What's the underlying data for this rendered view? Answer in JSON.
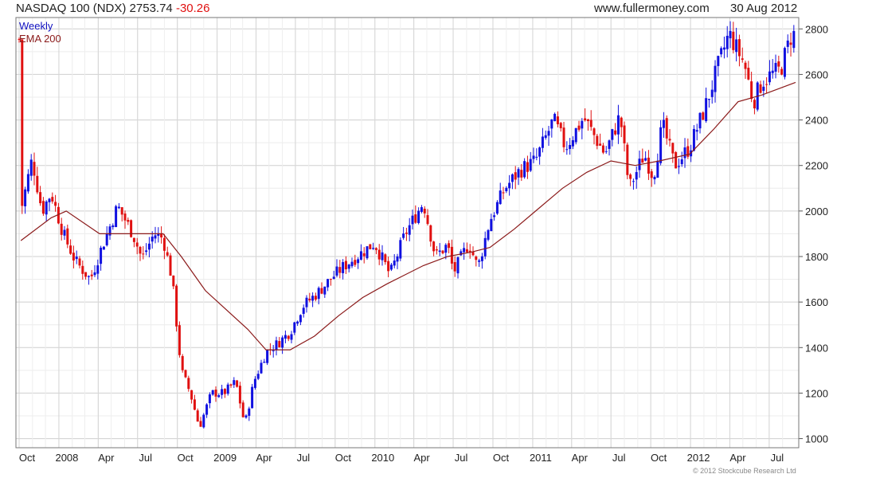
{
  "header": {
    "title": "NASDAQ 100 (NDX)",
    "last": "2753.74",
    "change": "-30.26",
    "site": "www.fullermoney.com",
    "date": "30 Aug 2012"
  },
  "legend": {
    "period": "Weekly",
    "ema": "EMA 200"
  },
  "copyright": "© 2012 Stockcube Research Ltd",
  "colors": {
    "up": "#1010e0",
    "down": "#e01010",
    "ema": "#8b1a1a",
    "grid": "#d4d4d4",
    "period_label": "#1010c0",
    "ema_label": "#8b1a1a"
  },
  "chart_data": {
    "type": "candlestick",
    "title": "NASDAQ 100 (NDX)",
    "frequency": "Weekly",
    "y_axis_side": "right",
    "ylim": [
      960,
      2850
    ],
    "y_ticks": [
      1000,
      1200,
      1400,
      1600,
      1800,
      2000,
      2200,
      2400,
      2600,
      2800
    ],
    "x_range": [
      "2007-10-01",
      "2012-08-31"
    ],
    "x_ticks": [
      {
        "date": "2007-10-01",
        "label": "Oct"
      },
      {
        "date": "2008-01-01",
        "label": "2008"
      },
      {
        "date": "2008-04-01",
        "label": "Apr"
      },
      {
        "date": "2008-07-01",
        "label": "Jul"
      },
      {
        "date": "2008-10-01",
        "label": "Oct"
      },
      {
        "date": "2009-01-01",
        "label": "2009"
      },
      {
        "date": "2009-04-01",
        "label": "Apr"
      },
      {
        "date": "2009-07-01",
        "label": "Jul"
      },
      {
        "date": "2009-10-01",
        "label": "Oct"
      },
      {
        "date": "2010-01-01",
        "label": "2010"
      },
      {
        "date": "2010-04-01",
        "label": "Apr"
      },
      {
        "date": "2010-07-01",
        "label": "Jul"
      },
      {
        "date": "2010-10-01",
        "label": "Oct"
      },
      {
        "date": "2011-01-01",
        "label": "2011"
      },
      {
        "date": "2011-04-01",
        "label": "Apr"
      },
      {
        "date": "2011-07-01",
        "label": "Jul"
      },
      {
        "date": "2011-10-01",
        "label": "Oct"
      },
      {
        "date": "2012-01-01",
        "label": "2012"
      },
      {
        "date": "2012-04-01",
        "label": "Apr"
      },
      {
        "date": "2012-07-01",
        "label": "Jul"
      }
    ],
    "price_path": [
      [
        "2007-10-05",
        2000
      ],
      [
        "2007-10-31",
        2230
      ],
      [
        "2007-11-23",
        2000
      ],
      [
        "2007-12-14",
        2080
      ],
      [
        "2008-01-11",
        1900
      ],
      [
        "2008-02-08",
        1780
      ],
      [
        "2008-03-14",
        1700
      ],
      [
        "2008-04-11",
        1850
      ],
      [
        "2008-05-16",
        2020
      ],
      [
        "2008-06-20",
        1900
      ],
      [
        "2008-07-11",
        1790
      ],
      [
        "2008-08-08",
        1900
      ],
      [
        "2008-08-29",
        1880
      ],
      [
        "2008-09-19",
        1700
      ],
      [
        "2008-10-10",
        1300
      ],
      [
        "2008-10-31",
        1200
      ],
      [
        "2008-11-21",
        1050
      ],
      [
        "2008-12-19",
        1200
      ],
      [
        "2009-01-16",
        1200
      ],
      [
        "2009-02-13",
        1250
      ],
      [
        "2009-03-06",
        1060
      ],
      [
        "2009-03-27",
        1250
      ],
      [
        "2009-04-24",
        1380
      ],
      [
        "2009-05-22",
        1420
      ],
      [
        "2009-06-19",
        1470
      ],
      [
        "2009-07-17",
        1580
      ],
      [
        "2009-08-21",
        1640
      ],
      [
        "2009-09-25",
        1710
      ],
      [
        "2009-10-23",
        1760
      ],
      [
        "2009-11-20",
        1800
      ],
      [
        "2009-12-31",
        1860
      ],
      [
        "2010-02-05",
        1720
      ],
      [
        "2010-03-12",
        1900
      ],
      [
        "2010-04-23",
        2040
      ],
      [
        "2010-05-21",
        1800
      ],
      [
        "2010-06-18",
        1850
      ],
      [
        "2010-07-02",
        1730
      ],
      [
        "2010-08-06",
        1860
      ],
      [
        "2010-08-27",
        1750
      ],
      [
        "2010-09-24",
        1960
      ],
      [
        "2010-10-29",
        2100
      ],
      [
        "2010-12-03",
        2180
      ],
      [
        "2011-01-07",
        2220
      ],
      [
        "2011-02-18",
        2400
      ],
      [
        "2011-03-18",
        2280
      ],
      [
        "2011-04-29",
        2410
      ],
      [
        "2011-06-17",
        2250
      ],
      [
        "2011-07-22",
        2420
      ],
      [
        "2011-08-12",
        2100
      ],
      [
        "2011-09-16",
        2250
      ],
      [
        "2011-10-07",
        2150
      ],
      [
        "2011-10-28",
        2380
      ],
      [
        "2011-11-25",
        2200
      ],
      [
        "2011-12-30",
        2280
      ],
      [
        "2012-02-03",
        2450
      ],
      [
        "2012-03-02",
        2620
      ],
      [
        "2012-03-30",
        2780
      ],
      [
        "2012-04-20",
        2700
      ],
      [
        "2012-05-04",
        2650
      ],
      [
        "2012-05-25",
        2480
      ],
      [
        "2012-06-15",
        2570
      ],
      [
        "2012-07-06",
        2600
      ],
      [
        "2012-07-27",
        2620
      ],
      [
        "2012-08-24",
        2790
      ],
      [
        "2012-08-31",
        2754
      ]
    ],
    "ema_path": [
      [
        "2007-10-05",
        1870
      ],
      [
        "2007-12-14",
        1970
      ],
      [
        "2008-01-18",
        2000
      ],
      [
        "2008-04-04",
        1900
      ],
      [
        "2008-06-06",
        1900
      ],
      [
        "2008-08-29",
        1900
      ],
      [
        "2008-10-10",
        1800
      ],
      [
        "2008-12-05",
        1650
      ],
      [
        "2009-03-13",
        1480
      ],
      [
        "2009-04-24",
        1390
      ],
      [
        "2009-06-19",
        1390
      ],
      [
        "2009-08-14",
        1450
      ],
      [
        "2009-10-09",
        1540
      ],
      [
        "2009-12-04",
        1620
      ],
      [
        "2010-01-29",
        1680
      ],
      [
        "2010-04-23",
        1760
      ],
      [
        "2010-06-18",
        1800
      ],
      [
        "2010-08-13",
        1820
      ],
      [
        "2010-09-24",
        1840
      ],
      [
        "2010-11-19",
        1920
      ],
      [
        "2011-01-14",
        2010
      ],
      [
        "2011-03-11",
        2100
      ],
      [
        "2011-05-06",
        2170
      ],
      [
        "2011-07-01",
        2220
      ],
      [
        "2011-08-26",
        2200
      ],
      [
        "2011-10-21",
        2220
      ],
      [
        "2011-12-30",
        2250
      ],
      [
        "2012-02-24",
        2360
      ],
      [
        "2012-04-20",
        2480
      ],
      [
        "2012-06-15",
        2510
      ],
      [
        "2012-08-31",
        2565
      ]
    ],
    "last_close": 2753.74,
    "change": -30.26
  }
}
